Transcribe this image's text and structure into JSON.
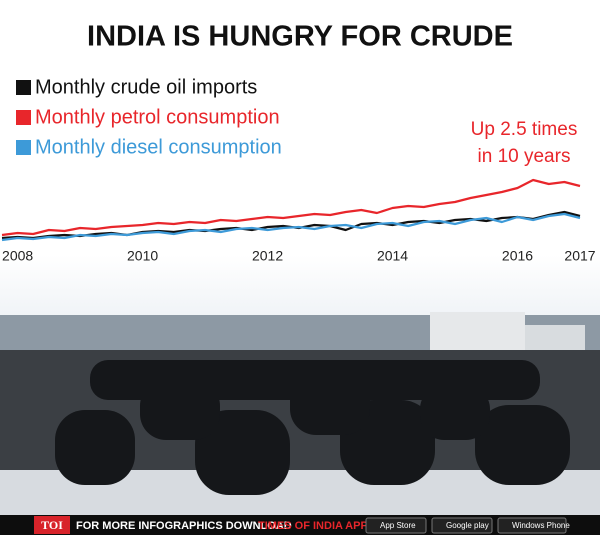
{
  "chart_data": {
    "type": "line",
    "title": "INDIA IS HUNGRY FOR CRUDE",
    "annotation": [
      "Up 2.5 times",
      "in 10 years"
    ],
    "x": [
      2007.75,
      2008,
      2008.25,
      2008.5,
      2008.75,
      2009,
      2009.25,
      2009.5,
      2009.75,
      2010,
      2010.25,
      2010.5,
      2010.75,
      2011,
      2011.25,
      2011.5,
      2011.75,
      2012,
      2012.25,
      2012.5,
      2012.75,
      2013,
      2013.25,
      2013.5,
      2013.75,
      2014,
      2014.25,
      2014.5,
      2014.75,
      2015,
      2015.25,
      2015.5,
      2015.75,
      2016,
      2016.25,
      2016.5,
      2016.75,
      2017
    ],
    "xlim": [
      2007.75,
      2017
    ],
    "xticks": [
      2008,
      2010,
      2012,
      2014,
      2016,
      2017
    ],
    "ylim": [
      0,
      100
    ],
    "series": [
      {
        "name": "Monthly crude oil imports",
        "color": "#111111",
        "values": [
          12,
          13,
          12,
          14,
          15,
          14,
          16,
          17,
          15,
          18,
          19,
          18,
          20,
          19,
          21,
          22,
          20,
          23,
          24,
          22,
          25,
          24,
          20,
          26,
          27,
          25,
          28,
          29,
          27,
          30,
          31,
          29,
          32,
          33,
          31,
          35,
          38,
          34
        ]
      },
      {
        "name": "Monthly petrol consumption",
        "color": "#e8262b",
        "values": [
          15,
          17,
          16,
          20,
          19,
          22,
          21,
          23,
          24,
          25,
          27,
          26,
          28,
          27,
          30,
          29,
          31,
          33,
          32,
          34,
          36,
          35,
          38,
          40,
          37,
          42,
          44,
          43,
          46,
          48,
          52,
          55,
          58,
          62,
          70,
          66,
          68,
          64
        ]
      },
      {
        "name": "Monthly diesel consumption",
        "color": "#3d9ad8",
        "values": [
          10,
          12,
          11,
          13,
          12,
          15,
          14,
          16,
          15,
          17,
          18,
          16,
          19,
          20,
          18,
          21,
          22,
          20,
          22,
          23,
          21,
          24,
          25,
          22,
          26,
          27,
          24,
          28,
          29,
          26,
          30,
          32,
          28,
          33,
          30,
          34,
          36,
          32
        ]
      }
    ]
  },
  "footer": {
    "brand": "TOI",
    "text": "FOR MORE INFOGRAPHICS DOWNLOAD",
    "app": "TIMES OF INDIA APP",
    "badges": [
      "App Store",
      "Google play",
      "Windows Phone"
    ]
  }
}
